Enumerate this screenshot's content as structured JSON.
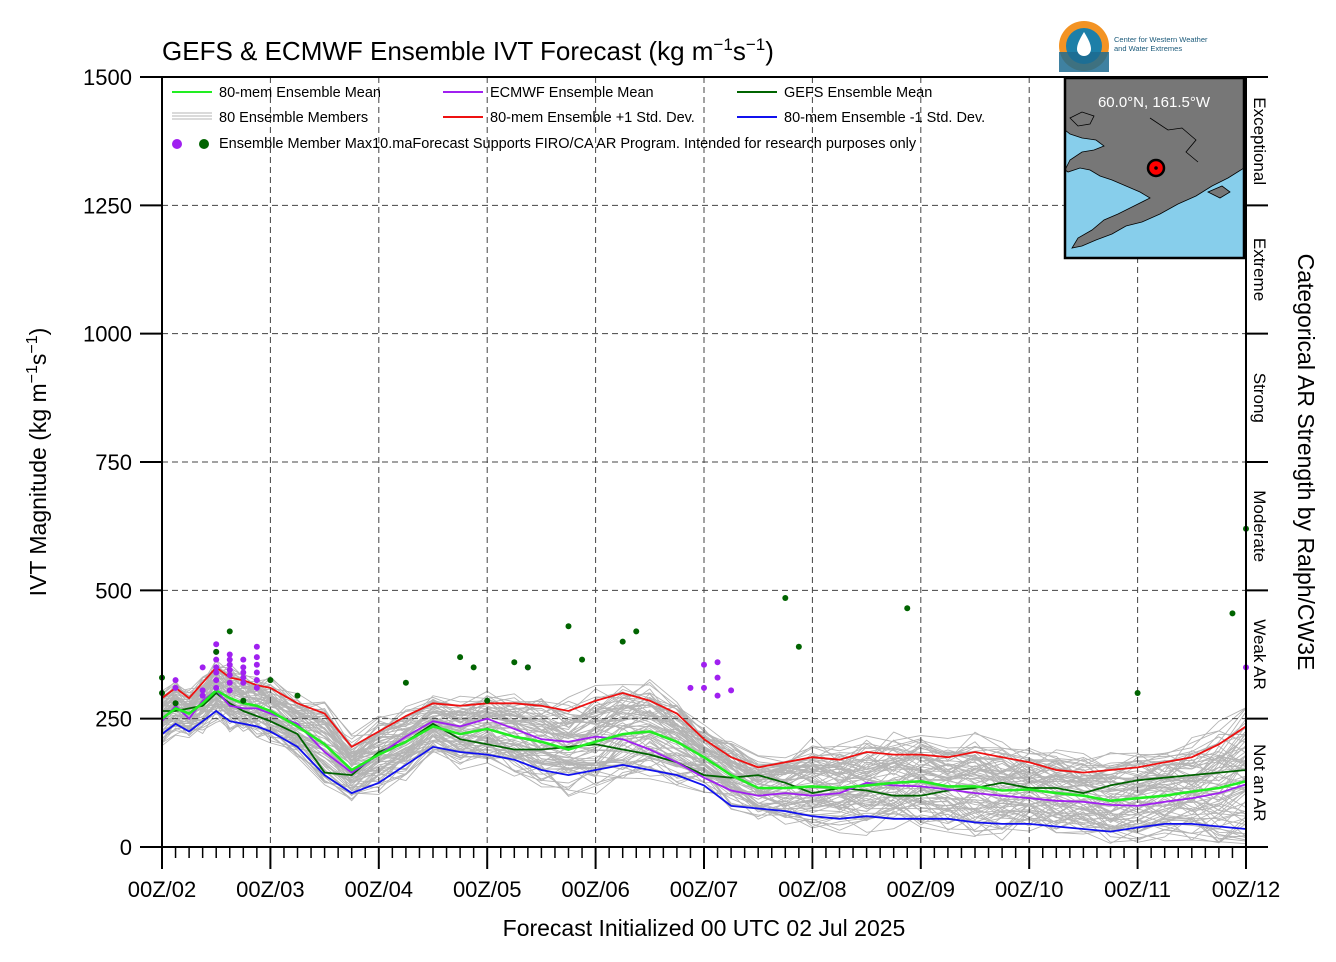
{
  "chart_data": {
    "type": "line",
    "title_main": "GEFS & ECMWF Ensemble IVT Forecast (kg m",
    "title_sup1": "−1",
    "title_mid": "s",
    "title_sup2": "−1",
    "title_end": ")",
    "ylabel_main": "IVT Magnitude (kg m",
    "ylabel_sup1": "−1",
    "ylabel_mid": "s",
    "ylabel_sup2": "−1",
    "ylabel_end": ")",
    "xlabel": "Forecast Initialized 00 UTC 02 Jul 2025",
    "right_label": "Categorical AR Strength by Ralph/CW3E",
    "ylim": [
      0,
      1500
    ],
    "xlim": [
      0,
      10
    ],
    "yticks": [
      0,
      250,
      500,
      750,
      1000,
      1250,
      1500
    ],
    "ytick_labels": [
      "0",
      "250",
      "500",
      "750",
      "1000",
      "1250",
      "1500"
    ],
    "xtick_labels": [
      "00Z/02",
      "00Z/03",
      "00Z/04",
      "00Z/05",
      "00Z/06",
      "00Z/07",
      "00Z/08",
      "00Z/09",
      "00Z/10",
      "00Z/11",
      "00Z/12"
    ],
    "grid": true,
    "categories": [
      {
        "label": "Not an AR",
        "range": [
          0,
          250
        ]
      },
      {
        "label": "Weak AR",
        "range": [
          250,
          500
        ]
      },
      {
        "label": "Moderate",
        "range": [
          500,
          750
        ]
      },
      {
        "label": "Strong",
        "range": [
          750,
          1000
        ]
      },
      {
        "label": "Extreme",
        "range": [
          1000,
          1250
        ]
      },
      {
        "label": "Exceptional",
        "range": [
          1250,
          1500
        ]
      }
    ],
    "legend": {
      "placement": "top-left",
      "entries": [
        {
          "label": "80-mem Ensemble Mean",
          "color": "#22ee22",
          "kind": "line"
        },
        {
          "label": "ECMWF Ensemble Mean",
          "color": "#a020f0",
          "kind": "line"
        },
        {
          "label": "GEFS Ensemble Mean",
          "color": "#006400",
          "kind": "line"
        },
        {
          "label": "80 Ensemble Members",
          "color": "#b4b4b4",
          "kind": "multiline"
        },
        {
          "label": "80-mem Ensemble +1 Std. Dev.",
          "color": "#ee1111",
          "kind": "line"
        },
        {
          "label": "80-mem Ensemble -1 Std. Dev.",
          "color": "#1111ee",
          "kind": "line"
        }
      ],
      "dots_label": "Ensemble Member Max10.maForecast Supports FIRO/CA AR Program. Intended for research purposes only"
    },
    "colors": {
      "mean": "#22ee22",
      "ecmwf": "#a020f0",
      "gefs": "#006400",
      "plus_sd": "#ee1111",
      "minus_sd": "#1111ee",
      "members": "#b4b4b4"
    },
    "x": [
      0,
      0.125,
      0.25,
      0.375,
      0.5,
      0.625,
      0.75,
      0.875,
      1,
      1.25,
      1.5,
      1.75,
      2,
      2.25,
      2.5,
      2.75,
      3,
      3.25,
      3.5,
      3.75,
      4,
      4.25,
      4.5,
      4.75,
      5,
      5.25,
      5.5,
      5.75,
      6,
      6.25,
      6.5,
      6.75,
      7,
      7.25,
      7.5,
      7.75,
      8,
      8.25,
      8.5,
      8.75,
      9,
      9.25,
      9.5,
      9.75,
      10
    ],
    "series": [
      {
        "name": "80-mem Ensemble Mean",
        "key": "mean",
        "values": [
          250,
          270,
          260,
          280,
          305,
          290,
          280,
          275,
          265,
          235,
          200,
          150,
          180,
          205,
          235,
          220,
          230,
          215,
          205,
          190,
          205,
          220,
          225,
          205,
          175,
          140,
          115,
          115,
          118,
          115,
          120,
          125,
          128,
          118,
          118,
          110,
          112,
          105,
          100,
          90,
          95,
          100,
          108,
          115,
          128
        ]
      },
      {
        "name": "ECMWF Ensemble Mean",
        "key": "ecmwf",
        "values": [
          245,
          275,
          250,
          285,
          305,
          275,
          270,
          270,
          260,
          240,
          185,
          145,
          180,
          215,
          245,
          235,
          250,
          230,
          210,
          205,
          215,
          210,
          190,
          165,
          135,
          110,
          100,
          105,
          100,
          105,
          125,
          120,
          118,
          112,
          105,
          100,
          95,
          90,
          88,
          82,
          80,
          88,
          95,
          105,
          122
        ]
      },
      {
        "name": "GEFS Ensemble Mean",
        "key": "gefs",
        "values": [
          265,
          265,
          270,
          275,
          300,
          280,
          265,
          255,
          245,
          220,
          145,
          140,
          185,
          205,
          240,
          210,
          200,
          190,
          190,
          195,
          200,
          190,
          180,
          165,
          140,
          135,
          140,
          125,
          105,
          115,
          110,
          100,
          100,
          110,
          115,
          125,
          115,
          115,
          105,
          120,
          130,
          135,
          140,
          145,
          150
        ]
      },
      {
        "name": "80-mem Ensemble +1 Std. Dev.",
        "key": "plus_sd",
        "values": [
          290,
          310,
          290,
          320,
          350,
          330,
          325,
          315,
          310,
          280,
          260,
          195,
          225,
          255,
          280,
          275,
          280,
          280,
          275,
          265,
          285,
          300,
          285,
          260,
          210,
          175,
          155,
          165,
          175,
          170,
          185,
          180,
          180,
          175,
          185,
          175,
          165,
          150,
          145,
          150,
          155,
          165,
          175,
          200,
          235
        ]
      },
      {
        "name": "80-mem Ensemble -1 Std. Dev.",
        "key": "minus_sd",
        "values": [
          220,
          240,
          225,
          245,
          265,
          245,
          240,
          235,
          225,
          195,
          140,
          105,
          125,
          160,
          195,
          185,
          180,
          170,
          150,
          140,
          150,
          160,
          150,
          140,
          120,
          80,
          75,
          70,
          60,
          55,
          60,
          55,
          55,
          55,
          48,
          45,
          45,
          40,
          35,
          30,
          38,
          45,
          45,
          40,
          35
        ]
      }
    ],
    "ecmwf_max_points": [
      [
        0.125,
        325
      ],
      [
        0.125,
        310
      ],
      [
        0.375,
        350
      ],
      [
        0.375,
        305
      ],
      [
        0.375,
        295
      ],
      [
        0.5,
        395
      ],
      [
        0.5,
        380
      ],
      [
        0.5,
        365
      ],
      [
        0.5,
        350
      ],
      [
        0.5,
        340
      ],
      [
        0.5,
        325
      ],
      [
        0.5,
        310
      ],
      [
        0.625,
        375
      ],
      [
        0.625,
        365
      ],
      [
        0.625,
        355
      ],
      [
        0.625,
        345
      ],
      [
        0.625,
        335
      ],
      [
        0.625,
        320
      ],
      [
        0.625,
        305
      ],
      [
        0.75,
        365
      ],
      [
        0.75,
        350
      ],
      [
        0.75,
        340
      ],
      [
        0.75,
        330
      ],
      [
        0.75,
        320
      ],
      [
        0.875,
        390
      ],
      [
        0.875,
        370
      ],
      [
        0.875,
        355
      ],
      [
        0.875,
        340
      ],
      [
        0.875,
        325
      ],
      [
        0.875,
        310
      ],
      [
        4.875,
        310
      ],
      [
        5.0,
        355
      ],
      [
        5.0,
        310
      ],
      [
        5.125,
        330
      ],
      [
        5.125,
        360
      ],
      [
        5.125,
        295
      ],
      [
        5.25,
        305
      ],
      [
        10.0,
        350
      ],
      [
        3.375,
        350
      ]
    ],
    "gefs_max_points": [
      [
        0,
        330
      ],
      [
        0,
        300
      ],
      [
        0.125,
        280
      ],
      [
        0.5,
        380
      ],
      [
        0.625,
        420
      ],
      [
        0.75,
        285
      ],
      [
        1.0,
        325
      ],
      [
        1.25,
        295
      ],
      [
        2.25,
        320
      ],
      [
        2.75,
        370
      ],
      [
        2.875,
        350
      ],
      [
        3.0,
        285
      ],
      [
        3.25,
        360
      ],
      [
        3.375,
        350
      ],
      [
        3.75,
        430
      ],
      [
        3.875,
        365
      ],
      [
        4.25,
        400
      ],
      [
        4.375,
        420
      ],
      [
        5.75,
        485
      ],
      [
        5.875,
        390
      ],
      [
        6.875,
        465
      ],
      [
        9.0,
        300
      ],
      [
        9.875,
        455
      ],
      [
        10.0,
        620
      ]
    ],
    "inset": {
      "label": "60.0°N, 161.5°W"
    },
    "logo": {
      "line1": "Center for Western Weather",
      "line2": "and Water Extremes"
    }
  }
}
